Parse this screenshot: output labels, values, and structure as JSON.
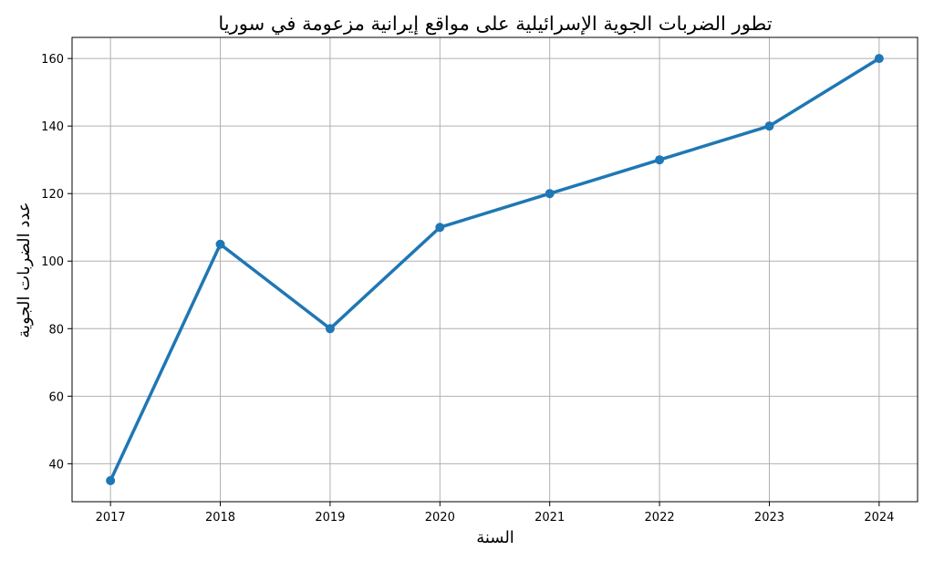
{
  "chart_data": {
    "type": "line",
    "title": "تطور الضربات الجوية الإسرائيلية على مواقع إيرانية مزعومة في سوريا",
    "xlabel": "السنة",
    "ylabel": "عدد الضربات الجوية",
    "x": [
      2017,
      2018,
      2019,
      2020,
      2021,
      2022,
      2023,
      2024
    ],
    "series": [
      {
        "values": [
          35,
          105,
          80,
          110,
          120,
          130,
          140,
          160
        ]
      }
    ],
    "yticks": [
      40,
      60,
      80,
      100,
      120,
      140,
      160
    ],
    "xticks": [
      2017,
      2018,
      2019,
      2020,
      2021,
      2022,
      2023,
      2024
    ],
    "xlim": [
      2016.65,
      2024.35
    ],
    "ylim": [
      28.75,
      166.25
    ],
    "grid": true,
    "line_color": "#1f77b4"
  }
}
